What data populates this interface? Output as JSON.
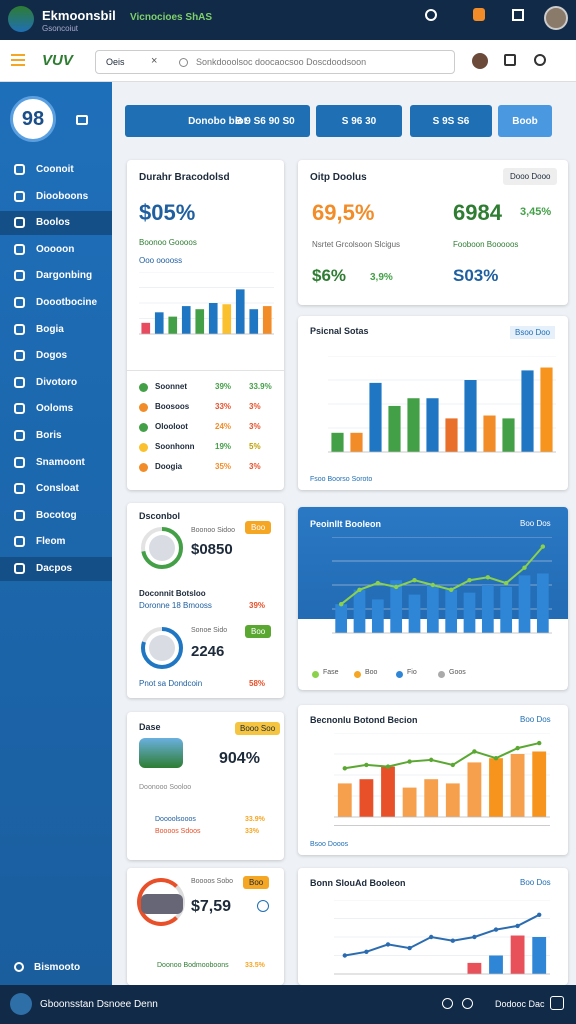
{
  "header": {
    "title": "Ekmoonsbil",
    "subtitle": "Gsoncoiut",
    "tagline": "Vicnocioes ShAS"
  },
  "toolbar": {
    "logo": "VUV",
    "search_tab": "Oeis",
    "search_placeholder": "Sonkdooolsoc doocaocsoo Doscdoodsoon"
  },
  "sidebar": {
    "badge": "98",
    "items": [
      "Coonoit",
      "Diooboons",
      "Boolos",
      "Ooooon",
      "Dargonbing",
      "Doootbocine",
      "Bogia",
      "Dogos",
      "Divotoro",
      "Ooloms",
      "Boris",
      "Snamoont",
      "Consloat",
      "Bocotog",
      "Fleom",
      "Dacpos"
    ],
    "footer": "Bismooto"
  },
  "buttons": [
    "Donobo biot",
    "B 9 S6 90 S0",
    "S 96 30",
    "S 9S S6",
    "Boob"
  ],
  "summary": {
    "title": "Durahr Bracodolsd",
    "value": "$05%",
    "label": "Boonoo Goooos",
    "sublabel": "Ooo ooooss",
    "chart": {
      "ylim": [
        0,
        100
      ],
      "bars": {
        "values": [
          18,
          35,
          28,
          45,
          40,
          50,
          48,
          72,
          40,
          45
        ],
        "colors": [
          "#e84a5f",
          "#1f77c4",
          "#43a047",
          "#1f77c4",
          "#43a047",
          "#1f77c4",
          "#fbc02d",
          "#1f77c4",
          "#1f77c4",
          "#f28c28"
        ]
      }
    },
    "rows": [
      {
        "name": "Soonnet",
        "a": "39%",
        "b": "33.9%",
        "color": "#43a047",
        "ca": "#43a047",
        "cb": "#43a047"
      },
      {
        "name": "Boosoos",
        "a": "33%",
        "b": "3%",
        "color": "#f28c28",
        "ca": "#e8502a",
        "cb": "#e8502a"
      },
      {
        "name": "Olooloot",
        "a": "24%",
        "b": "3%",
        "color": "#43a047",
        "ca": "#f28c28",
        "cb": "#e8502a"
      },
      {
        "name": "Soonhonn",
        "a": "19%",
        "b": "5%",
        "color": "#fbc02d",
        "ca": "#43a047",
        "cb": "#c0a000"
      },
      {
        "name": "Doogia",
        "a": "35%",
        "b": "3%",
        "color": "#f28c28",
        "ca": "#f28c28",
        "cb": "#e8502a"
      }
    ]
  },
  "gauges": {
    "title": "Dsconbol",
    "tag": "Boo",
    "first": {
      "label": "Boonoo Sidoo",
      "value": "$0850",
      "gauge": 72,
      "color": "#43a047"
    },
    "mid": {
      "title": "Doconnit Botsloo",
      "label": "Doronne 18 Bmooss",
      "pct": "39%"
    },
    "second": {
      "label": "Sonoe Sido",
      "tag": "Boo",
      "value": "2246",
      "gauge": 80,
      "color": "#1f77c4"
    },
    "footer": {
      "label": "Pnot sa Dondcoin",
      "pct": "58%"
    }
  },
  "promo": {
    "title": "Dase",
    "tag": "Booo Soo",
    "value": "904%",
    "label": "Doonooo Sooloo",
    "rows": [
      {
        "name": "Doooolsooos",
        "pct": "33.9%"
      },
      {
        "name": "Boooos Sdoos",
        "pct": "33%"
      }
    ]
  },
  "vehicle": {
    "label": "Boooos Sobo",
    "tag": "Boo",
    "value": "$7,59",
    "rows": [
      {
        "name": "Doonoo Bodmooboons",
        "pct": "33.5%"
      }
    ]
  },
  "stats": {
    "title": "Oitp Doolus",
    "button": "Dooo Dooo",
    "items": [
      {
        "value": "69,5%",
        "color": "#f28c28"
      },
      {
        "value": "6984",
        "color": "#2e7d32"
      },
      {
        "value": "3,45%",
        "color": "#43a047"
      }
    ],
    "labels": [
      "Nsrtet Grcolsoon Slcigus",
      "Fooboon Booooos"
    ],
    "items2": [
      {
        "value": "$6%",
        "color": "#2e7d32"
      },
      {
        "value": "3,9%",
        "color": "#43a047"
      },
      {
        "value": "S03%",
        "color": "#1f5fa0"
      }
    ]
  },
  "sales": {
    "title": "Psicnal Sotas",
    "tag": "Bsoo Doo",
    "legend": "Fsoo Boorso Soroto",
    "chart": {
      "ylim": [
        0,
        100
      ],
      "bars": {
        "values": [
          20,
          20,
          72,
          48,
          56,
          56,
          35,
          75,
          38,
          35,
          85,
          88
        ],
        "colors": [
          "#43a047",
          "#f28c28",
          "#1f77c4",
          "#43a047",
          "#43a047",
          "#1f77c4",
          "#e8702a",
          "#1f77c4",
          "#f28c28",
          "#43a047",
          "#1f77c4",
          "#f7941d"
        ]
      }
    }
  },
  "trend": {
    "title": "Peoinllt Booleon",
    "tag": "Boo Dos",
    "legend": [
      "Fase",
      "Boo",
      "Fio",
      "Goos"
    ],
    "chart": {
      "ylim": [
        0,
        100
      ],
      "bars": {
        "values": [
          30,
          45,
          35,
          55,
          40,
          50,
          45,
          42,
          50,
          48,
          60,
          62
        ],
        "colors": [
          "#2f86d6",
          "#2f86d6",
          "#2f86d6",
          "#2f86d6",
          "#2f86d6",
          "#2f86d6",
          "#2f86d6",
          "#2f86d6",
          "#2f86d6",
          "#2f86d6",
          "#2f86d6",
          "#2f86d6"
        ]
      },
      "line": {
        "values": [
          30,
          45,
          52,
          48,
          55,
          50,
          45,
          55,
          58,
          52,
          68,
          90
        ],
        "color": "#8bd14a"
      }
    }
  },
  "revenue": {
    "title": "Becnonlu Botond Becion",
    "tag": "Boo Dos",
    "legend": "Bsoo Dooos",
    "chart": {
      "ylim": [
        0,
        100
      ],
      "bars": {
        "values": [
          40,
          45,
          60,
          35,
          45,
          40,
          65,
          70,
          75,
          78
        ],
        "colors": [
          "#f6a04d",
          "#e8502a",
          "#e8502a",
          "#f6a04d",
          "#f6a04d",
          "#f6a04d",
          "#f6a04d",
          "#f7941d",
          "#f6a04d",
          "#f7941d"
        ]
      },
      "line": {
        "values": [
          58,
          62,
          60,
          66,
          68,
          62,
          78,
          70,
          82,
          88
        ],
        "color": "#5aa832"
      }
    }
  },
  "growth": {
    "title": "Bonn SlouAd Booleon",
    "tag": "Boo Dos",
    "chart": {
      "ylim": [
        0,
        100
      ],
      "bars": {
        "values": [
          0,
          0,
          0,
          0,
          0,
          0,
          15,
          25,
          52,
          50
        ],
        "colors": [
          "#e8502a",
          "#e8502a",
          "#e8502a",
          "#e8502a",
          "#e8502a",
          "#e8502a",
          "#e8505a",
          "#2f86d6",
          "#e8505a",
          "#2f86d6"
        ]
      },
      "line": {
        "values": [
          25,
          30,
          40,
          35,
          50,
          45,
          50,
          60,
          65,
          80
        ],
        "color": "#2b6cb0"
      }
    }
  },
  "footer": {
    "left": "Gboonsstan Dsnoee Denn",
    "right": "Dodooc Dac"
  }
}
